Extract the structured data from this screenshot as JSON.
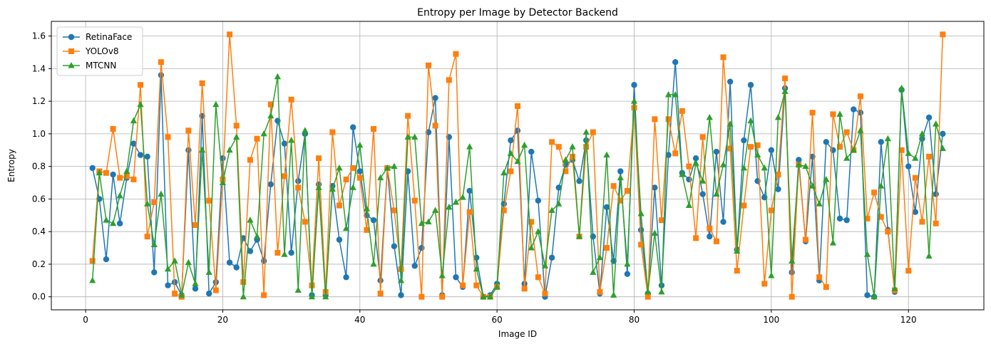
{
  "chart_data": {
    "type": "line",
    "title": "Entropy per Image by Detector Backend",
    "xlabel": "Image ID",
    "ylabel": "Entropy",
    "xlim": [
      -5,
      131
    ],
    "ylim": [
      -0.08,
      1.69
    ],
    "xticks": [
      0,
      20,
      40,
      60,
      80,
      100,
      120
    ],
    "yticks": [
      0.0,
      0.2,
      0.4,
      0.6,
      0.8,
      1.0,
      1.2,
      1.4,
      1.6
    ],
    "xtick_labels": [
      "0",
      "20",
      "40",
      "60",
      "80",
      "100",
      "120"
    ],
    "ytick_labels": [
      "0.0",
      "0.2",
      "0.4",
      "0.6",
      "0.8",
      "1.0",
      "1.2",
      "1.4",
      "1.6"
    ],
    "grid": true,
    "legend_position": "upper-left",
    "x": [
      1,
      2,
      3,
      4,
      5,
      6,
      7,
      8,
      9,
      10,
      11,
      12,
      13,
      14,
      15,
      16,
      17,
      18,
      19,
      20,
      21,
      22,
      23,
      24,
      25,
      26,
      27,
      28,
      29,
      30,
      31,
      32,
      33,
      34,
      35,
      36,
      37,
      38,
      39,
      40,
      41,
      42,
      43,
      44,
      45,
      46,
      47,
      48,
      49,
      50,
      51,
      52,
      53,
      54,
      55,
      56,
      57,
      58,
      59,
      60,
      61,
      62,
      63,
      64,
      65,
      66,
      67,
      68,
      69,
      70,
      71,
      72,
      73,
      74,
      75,
      76,
      77,
      78,
      79,
      80,
      81,
      82,
      83,
      84,
      85,
      86,
      87,
      88,
      89,
      90,
      91,
      92,
      93,
      94,
      95,
      96,
      97,
      98,
      99,
      100,
      101,
      102,
      103,
      104,
      105,
      106,
      107,
      108,
      109,
      110,
      111,
      112,
      113,
      114,
      115,
      116,
      117,
      118,
      119,
      120,
      121,
      122,
      123,
      124,
      125
    ],
    "series": [
      {
        "name": "RetinaFace",
        "color": "#1f77b4",
        "marker": "circle",
        "values": [
          0.79,
          0.6,
          0.23,
          0.75,
          0.45,
          0.73,
          0.94,
          0.87,
          0.86,
          0.15,
          1.36,
          0.07,
          0.09,
          0.01,
          0.9,
          0.05,
          1.11,
          0.02,
          0.09,
          0.85,
          0.21,
          0.18,
          0.36,
          0.28,
          0.35,
          0.22,
          0.69,
          1.08,
          0.94,
          0.27,
          0.71,
          1.0,
          0.01,
          0.69,
          0.01,
          0.68,
          0.35,
          0.12,
          1.04,
          0.77,
          0.5,
          0.47,
          0.1,
          0.79,
          0.31,
          0.01,
          0.77,
          0.19,
          0.3,
          1.01,
          1.22,
          0.01,
          0.98,
          0.12,
          0.06,
          0.65,
          0.24,
          0.0,
          0.01,
          0.08,
          0.57,
          0.96,
          1.02,
          0.08,
          0.89,
          0.59,
          0.0,
          0.24,
          0.67,
          0.81,
          0.84,
          0.71,
          0.96,
          0.37,
          0.02,
          0.55,
          0.22,
          0.77,
          0.14,
          1.3,
          0.41,
          0.02,
          0.67,
          0.07,
          0.87,
          1.44,
          0.76,
          0.72,
          0.85,
          0.63,
          0.37,
          0.89,
          0.46,
          1.32,
          0.29,
          0.96,
          1.3,
          0.71,
          0.61,
          0.9,
          0.66,
          1.28,
          0.15,
          0.84,
          0.34,
          0.86,
          0.1,
          0.95,
          0.9,
          0.48,
          0.47,
          1.15,
          1.13,
          0.01,
          0.0,
          0.95,
          0.41,
          0.03,
          1.27,
          0.8,
          0.52,
          0.97,
          1.1,
          0.63,
          1.0
        ]
      },
      {
        "name": "YOLOv8",
        "color": "#ff7f0e",
        "marker": "square",
        "values": [
          0.22,
          0.77,
          0.76,
          1.03,
          0.73,
          0.74,
          0.72,
          1.3,
          0.37,
          0.58,
          1.44,
          0.98,
          0.02,
          0.0,
          1.02,
          0.44,
          1.31,
          0.59,
          0.04,
          0.72,
          1.61,
          1.05,
          0.09,
          0.84,
          0.97,
          0.01,
          1.18,
          0.27,
          0.74,
          1.21,
          0.67,
          0.46,
          0.07,
          0.85,
          0.03,
          1.01,
          0.56,
          0.72,
          0.79,
          0.73,
          0.41,
          1.03,
          0.02,
          0.79,
          0.53,
          0.17,
          1.11,
          0.59,
          0.0,
          1.42,
          1.05,
          0.0,
          1.33,
          1.49,
          0.07,
          0.52,
          0.07,
          0.0,
          0.0,
          0.06,
          0.53,
          0.77,
          1.17,
          0.05,
          0.46,
          0.12,
          0.02,
          0.95,
          0.92,
          0.77,
          0.86,
          0.37,
          0.92,
          1.01,
          0.03,
          0.3,
          0.68,
          0.59,
          0.65,
          1.16,
          0.32,
          0.0,
          1.09,
          0.47,
          1.09,
          0.88,
          1.14,
          0.8,
          0.36,
          0.98,
          0.42,
          0.34,
          1.47,
          0.91,
          0.16,
          0.56,
          0.92,
          0.93,
          0.08,
          0.53,
          0.75,
          1.34,
          0.0,
          0.81,
          0.35,
          1.13,
          0.12,
          0.06,
          1.12,
          0.92,
          1.01,
          0.9,
          1.23,
          0.48,
          0.64,
          0.49,
          0.4,
          0.04,
          0.9,
          0.16,
          0.73,
          0.46,
          0.86,
          0.45,
          1.61
        ]
      },
      {
        "name": "MTCNN",
        "color": "#2ca02c",
        "marker": "triangle",
        "values": [
          0.1,
          0.76,
          0.47,
          0.45,
          0.62,
          0.77,
          1.08,
          1.18,
          0.57,
          0.32,
          0.63,
          0.17,
          0.22,
          0.01,
          0.21,
          0.08,
          0.9,
          0.15,
          1.18,
          0.7,
          0.9,
          0.98,
          0.0,
          0.47,
          0.37,
          1.0,
          1.11,
          1.35,
          0.26,
          0.96,
          0.04,
          1.02,
          0.0,
          0.67,
          0.0,
          0.66,
          0.79,
          0.42,
          0.67,
          0.93,
          0.54,
          0.2,
          0.73,
          0.79,
          0.8,
          0.1,
          0.98,
          0.98,
          0.45,
          0.46,
          0.53,
          0.13,
          0.55,
          0.58,
          0.61,
          0.92,
          0.17,
          0.0,
          0.0,
          0.06,
          0.76,
          0.88,
          0.83,
          0.93,
          0.3,
          0.4,
          0.19,
          0.53,
          0.57,
          0.84,
          0.92,
          0.37,
          1.01,
          0.15,
          0.24,
          0.87,
          0.01,
          0.73,
          0.2,
          1.2,
          0.51,
          0.03,
          0.39,
          0.03,
          1.24,
          1.24,
          0.75,
          0.56,
          0.82,
          0.71,
          1.1,
          0.63,
          0.81,
          1.06,
          0.28,
          0.79,
          1.08,
          0.87,
          0.79,
          0.13,
          1.1,
          1.26,
          0.22,
          0.81,
          0.8,
          0.68,
          0.57,
          0.72,
          0.33,
          1.12,
          0.85,
          0.9,
          1.02,
          0.26,
          0.0,
          0.68,
          0.97,
          0.05,
          1.28,
          0.88,
          0.85,
          1.0,
          0.25,
          1.06,
          0.91
        ]
      }
    ]
  }
}
